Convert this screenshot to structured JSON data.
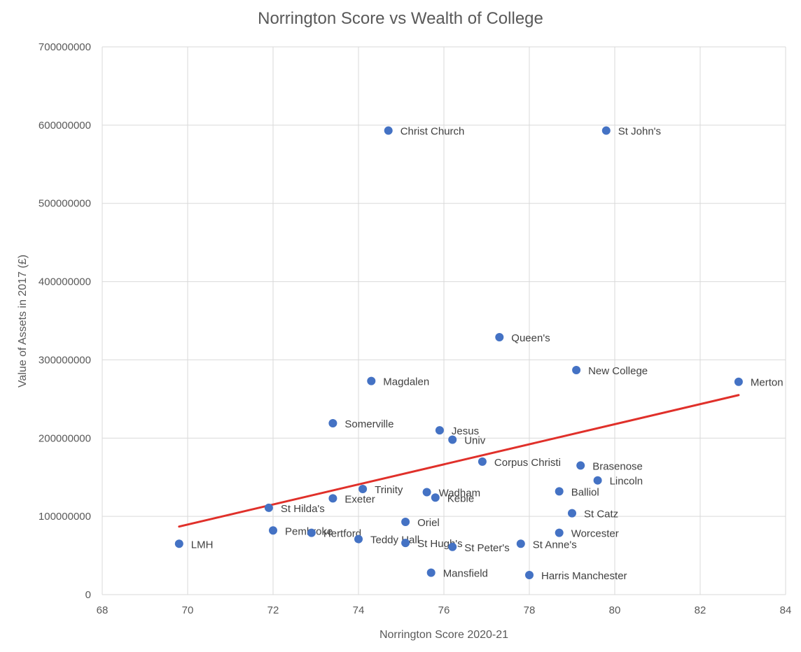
{
  "chart_data": {
    "type": "scatter",
    "title": "Norrington Score vs Wealth of College",
    "xlabel": "Norrington Score 2020-21",
    "ylabel": "Value of Assets in 2017 (£)",
    "xlim": [
      68,
      84
    ],
    "ylim": [
      0,
      700000000
    ],
    "x_ticks": [
      "68",
      "70",
      "72",
      "74",
      "76",
      "78",
      "80",
      "82",
      "84"
    ],
    "y_ticks": [
      "0",
      "100000000",
      "200000000",
      "300000000",
      "400000000",
      "500000000",
      "600000000",
      "700000000"
    ],
    "grid": true,
    "marker_color": "#4472c4",
    "trendline_color": "#e0302a",
    "trendline": {
      "type": "linear",
      "x": [
        69.8,
        82.9
      ],
      "y": [
        87000000,
        255000000
      ]
    },
    "points": [
      {
        "label": "LMH",
        "x": 69.8,
        "y": 65000000
      },
      {
        "label": "St Hilda's",
        "x": 71.9,
        "y": 111000000
      },
      {
        "label": "Pembroke",
        "x": 72.0,
        "y": 82000000
      },
      {
        "label": "Hertford",
        "x": 72.9,
        "y": 79000000
      },
      {
        "label": "Exeter",
        "x": 73.4,
        "y": 123000000
      },
      {
        "label": "Somerville",
        "x": 73.4,
        "y": 219000000
      },
      {
        "label": "Teddy Hall",
        "x": 74.0,
        "y": 71000000
      },
      {
        "label": "Trinity",
        "x": 74.1,
        "y": 135000000
      },
      {
        "label": "Magdalen",
        "x": 74.3,
        "y": 273000000
      },
      {
        "label": "Christ Church",
        "x": 74.7,
        "y": 593000000
      },
      {
        "label": "Oriel",
        "x": 75.1,
        "y": 93000000
      },
      {
        "label": "St Hugh's",
        "x": 75.1,
        "y": 66000000
      },
      {
        "label": "Wadham",
        "x": 75.6,
        "y": 131000000
      },
      {
        "label": "Mansfield",
        "x": 75.7,
        "y": 28000000
      },
      {
        "label": "Keble",
        "x": 75.8,
        "y": 124000000
      },
      {
        "label": "Jesus",
        "x": 75.9,
        "y": 210000000
      },
      {
        "label": "Univ",
        "x": 76.2,
        "y": 198000000
      },
      {
        "label": "St Peter's",
        "x": 76.2,
        "y": 61000000
      },
      {
        "label": "Corpus Christi",
        "x": 76.9,
        "y": 170000000
      },
      {
        "label": "Queen's",
        "x": 77.3,
        "y": 329000000
      },
      {
        "label": "St Anne's",
        "x": 77.8,
        "y": 65000000
      },
      {
        "label": "Harris Manchester",
        "x": 78.0,
        "y": 25000000
      },
      {
        "label": "Balliol",
        "x": 78.7,
        "y": 132000000
      },
      {
        "label": "Worcester",
        "x": 78.7,
        "y": 79000000
      },
      {
        "label": "St Catz",
        "x": 79.0,
        "y": 104000000
      },
      {
        "label": "New College",
        "x": 79.1,
        "y": 287000000
      },
      {
        "label": "Brasenose",
        "x": 79.2,
        "y": 165000000
      },
      {
        "label": "Lincoln",
        "x": 79.6,
        "y": 146000000
      },
      {
        "label": "St John's",
        "x": 79.8,
        "y": 593000000
      },
      {
        "label": "Merton",
        "x": 82.9,
        "y": 272000000
      }
    ]
  }
}
